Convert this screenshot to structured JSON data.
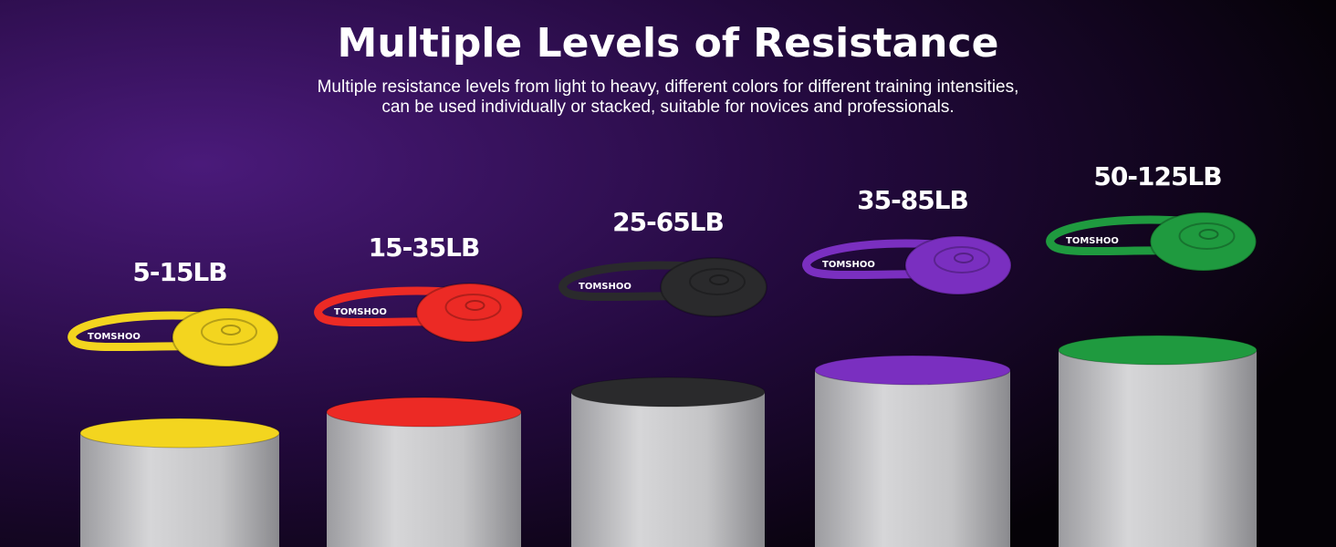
{
  "header": {
    "title": "Multiple Levels of Resistance",
    "subtitle": [
      "Multiple resistance levels from light to heavy, different colors for different training intensities,",
      "can be used individually or stacked, suitable for novices and professionals."
    ]
  },
  "brand": "TOMSHOO",
  "bands": [
    {
      "label": "5-15LB",
      "color": "#f3d51f"
    },
    {
      "label": "15-35LB",
      "color": "#ec2a25"
    },
    {
      "label": "25-65LB",
      "color": "#2a2a2c"
    },
    {
      "label": "35-85LB",
      "color": "#7a2fc0"
    },
    {
      "label": "50-125LB",
      "color": "#1f9a3f"
    }
  ]
}
